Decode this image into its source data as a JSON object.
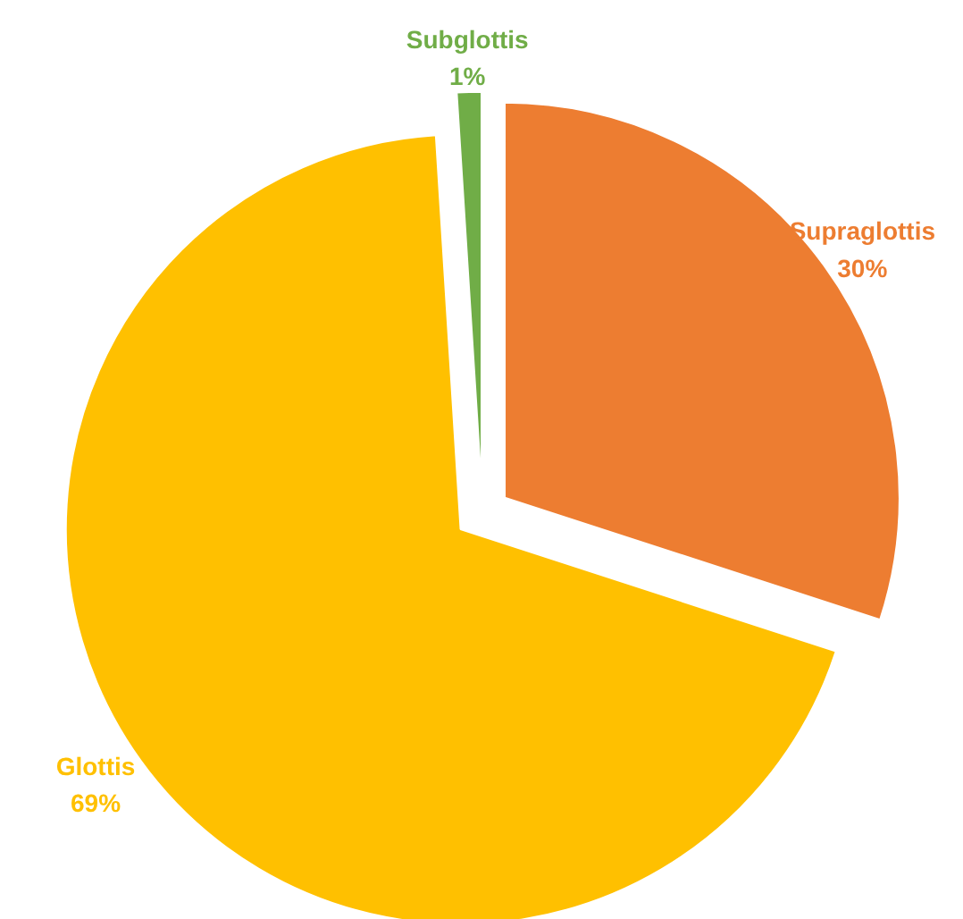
{
  "chart_data": {
    "type": "pie",
    "categories": [
      "Supraglottis",
      "Glottis",
      "Subglottis"
    ],
    "values": [
      30,
      69,
      1
    ],
    "colors": [
      "#ed7d31",
      "#ffc000",
      "#70ad47"
    ],
    "value_labels": [
      "30%",
      "69%",
      "1%"
    ]
  }
}
